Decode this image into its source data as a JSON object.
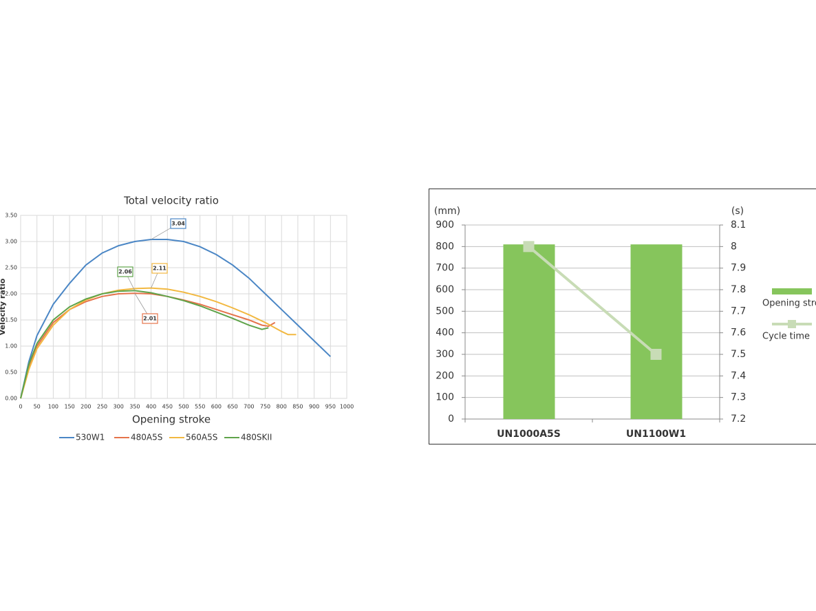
{
  "chart_data": [
    {
      "type": "line",
      "title": "Total velocity ratio",
      "ylabel": "Velocity ratio",
      "xlabel": "Opening stroke",
      "xlim": [
        0,
        1000
      ],
      "xticks": [
        0,
        50,
        100,
        150,
        200,
        250,
        300,
        350,
        400,
        450,
        500,
        550,
        600,
        650,
        700,
        750,
        800,
        850,
        900,
        950,
        1000
      ],
      "ylim": [
        0,
        3.5
      ],
      "yticks": [
        {
          "value": 0,
          "label": "0.00"
        },
        {
          "value": 0.5,
          "label": "0.50"
        },
        {
          "value": 1,
          "label": "1.00"
        },
        {
          "value": 1.5,
          "label": "1.50"
        },
        {
          "value": 2,
          "label": "2.00"
        },
        {
          "value": 2.5,
          "label": "2.50"
        },
        {
          "value": 3,
          "label": "3.00"
        },
        {
          "value": 3.5,
          "label": "3.50"
        }
      ],
      "grid": true,
      "legend": "bottom",
      "series": [
        {
          "name": "530W1",
          "color": "#4a86c5",
          "annotation": "3.04",
          "x": [
            0,
            25,
            50,
            100,
            150,
            200,
            250,
            300,
            350,
            400,
            450,
            500,
            550,
            600,
            650,
            700,
            750,
            800,
            850,
            900,
            950
          ],
          "values": [
            0,
            0.7,
            1.2,
            1.8,
            2.2,
            2.55,
            2.78,
            2.92,
            3.0,
            3.04,
            3.04,
            3.0,
            2.9,
            2.75,
            2.55,
            2.3,
            2.0,
            1.7,
            1.4,
            1.1,
            0.8
          ]
        },
        {
          "name": "480A5S",
          "color": "#e5734a",
          "annotation": "2.01",
          "x": [
            0,
            25,
            50,
            100,
            150,
            200,
            250,
            300,
            350,
            400,
            450,
            500,
            550,
            600,
            650,
            700,
            740,
            760,
            780
          ],
          "values": [
            0,
            0.6,
            1.0,
            1.45,
            1.7,
            1.85,
            1.95,
            2.0,
            2.01,
            2.0,
            1.95,
            1.88,
            1.8,
            1.7,
            1.6,
            1.5,
            1.4,
            1.38,
            1.45
          ]
        },
        {
          "name": "560A5S",
          "color": "#f2b840",
          "annotation": "2.11",
          "x": [
            0,
            25,
            50,
            100,
            150,
            200,
            250,
            300,
            350,
            400,
            450,
            500,
            550,
            600,
            650,
            700,
            750,
            800,
            820,
            845
          ],
          "values": [
            0,
            0.55,
            0.95,
            1.4,
            1.7,
            1.88,
            2.0,
            2.07,
            2.1,
            2.11,
            2.09,
            2.03,
            1.95,
            1.85,
            1.73,
            1.6,
            1.45,
            1.28,
            1.22,
            1.22
          ]
        },
        {
          "name": "480SKII",
          "color": "#5fa34a",
          "annotation": "2.06",
          "x": [
            0,
            25,
            50,
            100,
            150,
            200,
            250,
            300,
            350,
            400,
            450,
            500,
            550,
            600,
            650,
            700,
            740,
            760
          ],
          "values": [
            0,
            0.65,
            1.05,
            1.5,
            1.75,
            1.9,
            2.0,
            2.05,
            2.06,
            2.02,
            1.95,
            1.87,
            1.77,
            1.65,
            1.53,
            1.4,
            1.32,
            1.35
          ]
        }
      ]
    },
    {
      "type": "bar",
      "ylabel": "(mm)",
      "y2label": "(s)",
      "categories": [
        "UN1000A5S",
        "UN1100W1"
      ],
      "ylim": [
        0,
        900
      ],
      "yticks": [
        0,
        100,
        200,
        300,
        400,
        500,
        600,
        700,
        800,
        900
      ],
      "y2lim": [
        7.2,
        8.1
      ],
      "y2ticks": [
        7.2,
        7.3,
        7.4,
        7.5,
        7.6,
        7.7,
        7.8,
        7.9,
        8,
        8.1
      ],
      "grid": true,
      "legend": "right",
      "series": [
        {
          "name": "Opening stroke",
          "type": "bar",
          "color": "#86c55c",
          "values": [
            810,
            810
          ]
        },
        {
          "name": "Cycle time",
          "type": "line",
          "axis": "y2",
          "color": "#c8dcb6",
          "values": [
            8,
            7.5
          ]
        }
      ]
    }
  ]
}
